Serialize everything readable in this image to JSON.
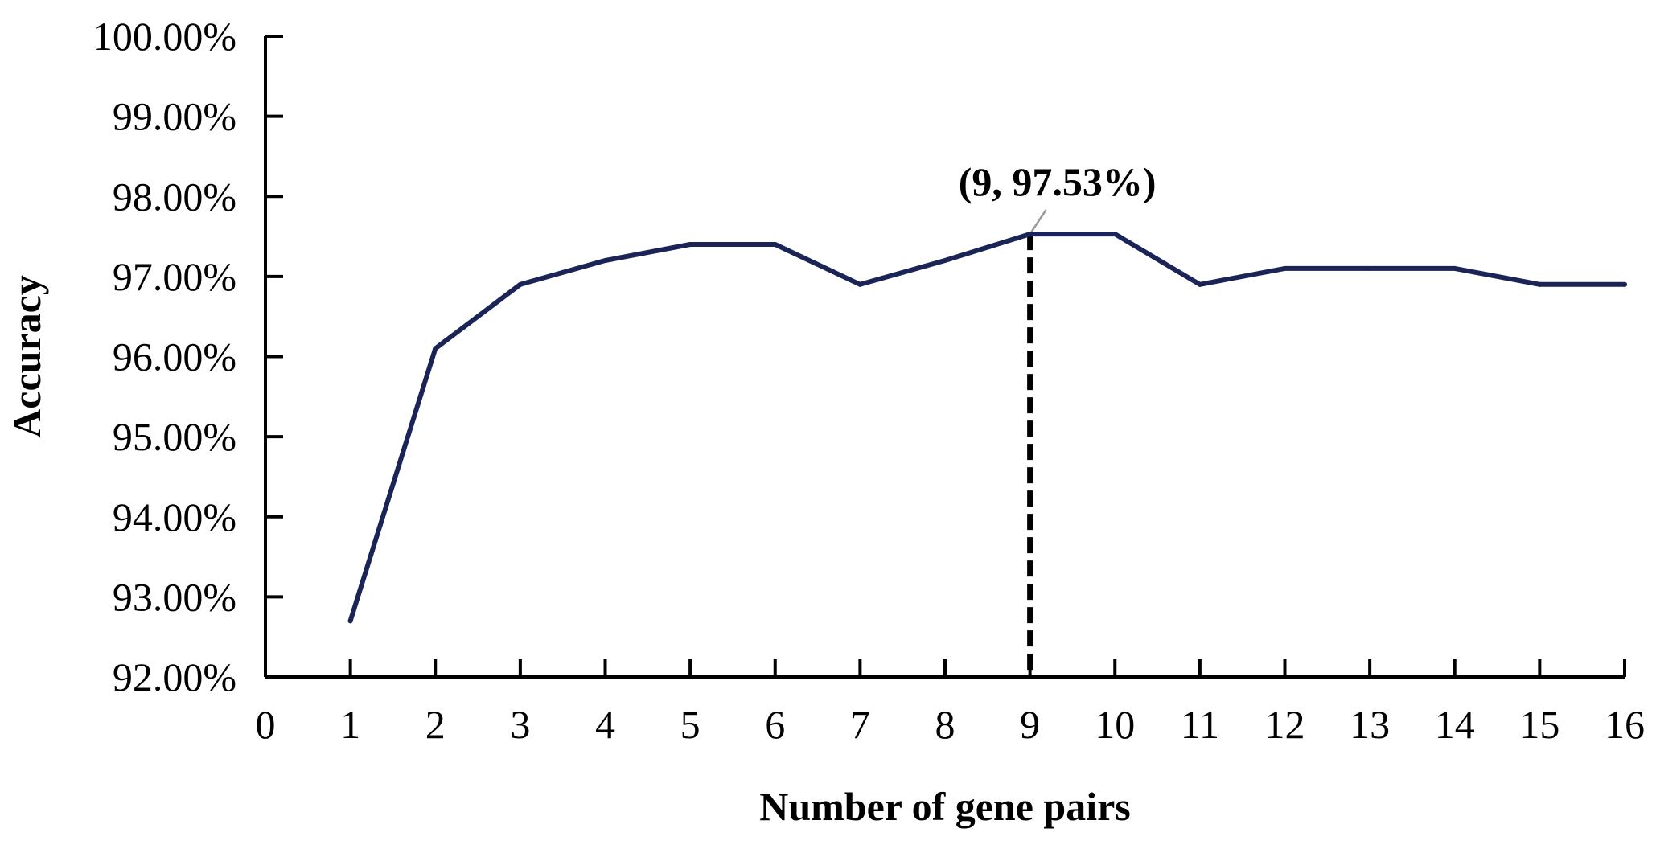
{
  "chart_data": {
    "type": "line",
    "xlabel": "Number of gene pairs",
    "ylabel": "Accuracy",
    "xlim": [
      0,
      16
    ],
    "ylim": [
      0.92,
      1.0
    ],
    "x_ticks": [
      0,
      1,
      2,
      3,
      4,
      5,
      6,
      7,
      8,
      9,
      10,
      11,
      12,
      13,
      14,
      15,
      16
    ],
    "x_tick_labels": [
      "0",
      "1",
      "2",
      "3",
      "4",
      "5",
      "6",
      "7",
      "8",
      "9",
      "10",
      "11",
      "12",
      "13",
      "14",
      "15",
      "16"
    ],
    "y_ticks": [
      0.92,
      0.93,
      0.94,
      0.95,
      0.96,
      0.97,
      0.98,
      0.99,
      1.0
    ],
    "y_tick_labels": [
      "92.00%",
      "93.00%",
      "94.00%",
      "95.00%",
      "96.00%",
      "97.00%",
      "98.00%",
      "99.00%",
      "100.00%"
    ],
    "series": [
      {
        "color": "#1a2456",
        "x": [
          1,
          2,
          3,
          4,
          5,
          6,
          7,
          8,
          9,
          10,
          11,
          12,
          13,
          14,
          15,
          16
        ],
        "y": [
          0.927,
          0.961,
          0.969,
          0.972,
          0.974,
          0.974,
          0.969,
          0.972,
          0.9753,
          0.9753,
          0.969,
          0.971,
          0.971,
          0.971,
          0.969,
          0.969
        ]
      }
    ],
    "annotation": {
      "text": "(9, 97.53%)",
      "x": 9,
      "y": 0.9753
    },
    "grid": false,
    "legend": "none"
  }
}
